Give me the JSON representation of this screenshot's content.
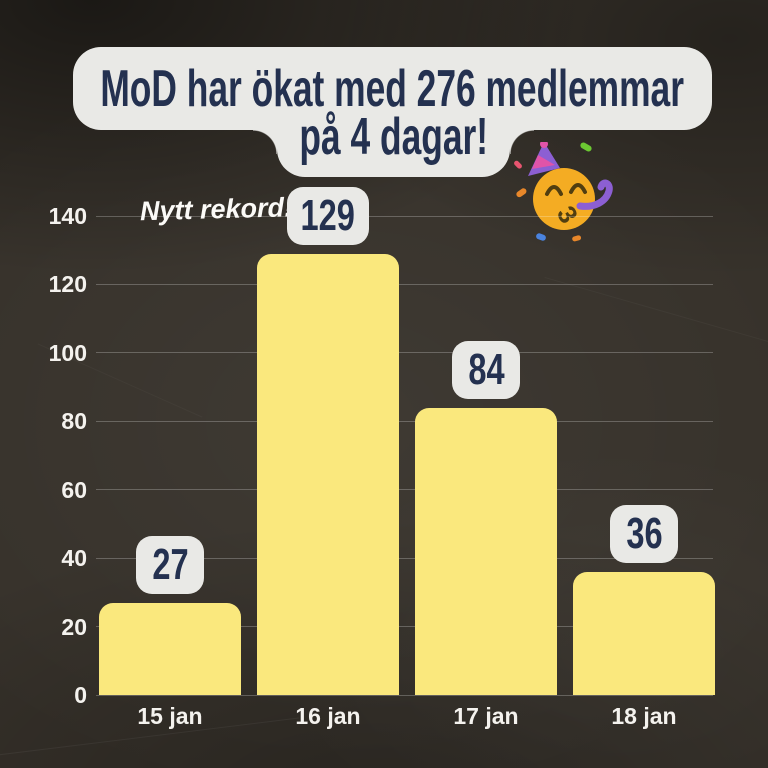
{
  "poster": {
    "title_line1": "MoD har ökat med 276 medlemmar",
    "title_line2": "på 4 dagar!",
    "annotation": "Nytt rekord!",
    "emoji": "party-face"
  },
  "chart_data": {
    "type": "bar",
    "title": "MoD har ökat med 276 medlemmar på 4 dagar!",
    "annotation": "Nytt rekord!",
    "categories": [
      "15 jan",
      "16 jan",
      "17 jan",
      "18 jan"
    ],
    "values": [
      27,
      129,
      84,
      36
    ],
    "total_shown_in_title": 276,
    "xlabel": "",
    "ylabel": "",
    "ylim": [
      0,
      140
    ],
    "yticks": [
      0,
      20,
      40,
      60,
      80,
      100,
      120,
      140
    ],
    "grid": true,
    "legend": false,
    "bar_color": "#FAE87D",
    "badge_bg": "#E9E9E6",
    "badge_text_color": "#243150",
    "axis_text_color": "#F4F2EE",
    "background_color": "#36312A"
  }
}
